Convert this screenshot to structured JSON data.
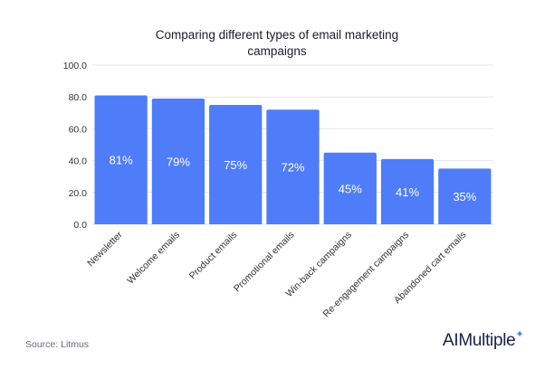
{
  "chart_data": {
    "type": "bar",
    "title_lines": [
      "Comparing different types of email marketing",
      "campaigns"
    ],
    "categories": [
      "Newsletter",
      "Welcome emails",
      "Product emails",
      "Promotional emails",
      "Win-back campaigns",
      "Re-engagement campaigns",
      "Abandoned cart emails"
    ],
    "values": [
      81,
      79,
      75,
      72,
      45,
      41,
      35
    ],
    "data_labels": [
      "81%",
      "79%",
      "75%",
      "72%",
      "45%",
      "41%",
      "35%"
    ],
    "ylim": [
      0,
      100
    ],
    "yticks": [
      0,
      20,
      40,
      60,
      80,
      100
    ],
    "ytick_labels": [
      "0.0",
      "20.0",
      "40.0",
      "60.0",
      "80.0",
      "100.0"
    ],
    "grid": true,
    "bar_color": "#4f7df9"
  },
  "footer": {
    "source": "Source: Litmus",
    "brand": "AIMultiple"
  }
}
